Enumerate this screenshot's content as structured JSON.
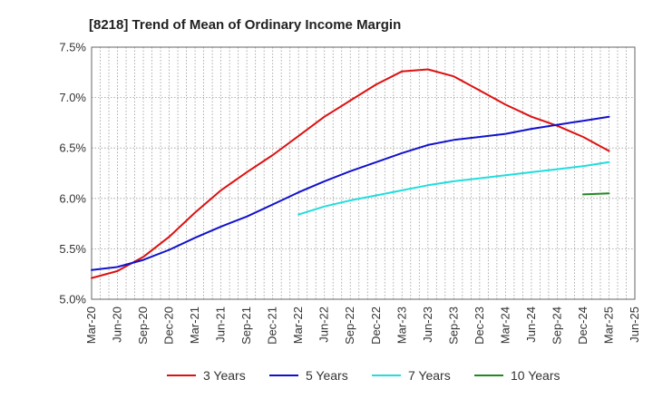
{
  "chart_data": {
    "type": "line",
    "title": "[8218]  Trend of Mean of Ordinary Income Margin",
    "xlabel": "",
    "ylabel": "",
    "x_ticks": [
      "Mar-20",
      "Jun-20",
      "Sep-20",
      "Dec-20",
      "Mar-21",
      "Jun-21",
      "Sep-21",
      "Dec-21",
      "Mar-22",
      "Jun-22",
      "Sep-22",
      "Dec-22",
      "Mar-23",
      "Jun-23",
      "Sep-23",
      "Dec-23",
      "Mar-24",
      "Jun-24",
      "Sep-24",
      "Dec-24",
      "Mar-25",
      "Jun-25"
    ],
    "y_ticks": [
      "5.0%",
      "5.5%",
      "6.0%",
      "6.5%",
      "7.0%",
      "7.5%"
    ],
    "ylim": [
      5.0,
      7.5
    ],
    "grid": true,
    "legend_position": "bottom",
    "series": [
      {
        "name": "3 Years",
        "color": "#dd1111",
        "points": [
          [
            "Mar-20",
            5.21
          ],
          [
            "Jun-20",
            5.28
          ],
          [
            "Sep-20",
            5.42
          ],
          [
            "Dec-20",
            5.62
          ],
          [
            "Mar-21",
            5.86
          ],
          [
            "Jun-21",
            6.08
          ],
          [
            "Sep-21",
            6.26
          ],
          [
            "Dec-21",
            6.43
          ],
          [
            "Mar-22",
            6.62
          ],
          [
            "Jun-22",
            6.81
          ],
          [
            "Sep-22",
            6.97
          ],
          [
            "Dec-22",
            7.13
          ],
          [
            "Mar-23",
            7.26
          ],
          [
            "Jun-23",
            7.28
          ],
          [
            "Sep-23",
            7.21
          ],
          [
            "Dec-23",
            7.07
          ],
          [
            "Mar-24",
            6.93
          ],
          [
            "Jun-24",
            6.81
          ],
          [
            "Sep-24",
            6.72
          ],
          [
            "Dec-24",
            6.61
          ],
          [
            "Mar-25",
            6.47
          ]
        ]
      },
      {
        "name": "5 Years",
        "color": "#1111cc",
        "points": [
          [
            "Mar-20",
            5.29
          ],
          [
            "Jun-20",
            5.32
          ],
          [
            "Sep-20",
            5.39
          ],
          [
            "Dec-20",
            5.49
          ],
          [
            "Mar-21",
            5.61
          ],
          [
            "Jun-21",
            5.72
          ],
          [
            "Sep-21",
            5.82
          ],
          [
            "Dec-21",
            5.94
          ],
          [
            "Mar-22",
            6.06
          ],
          [
            "Jun-22",
            6.17
          ],
          [
            "Sep-22",
            6.27
          ],
          [
            "Dec-22",
            6.36
          ],
          [
            "Mar-23",
            6.45
          ],
          [
            "Jun-23",
            6.53
          ],
          [
            "Sep-23",
            6.58
          ],
          [
            "Dec-23",
            6.61
          ],
          [
            "Mar-24",
            6.64
          ],
          [
            "Jun-24",
            6.69
          ],
          [
            "Sep-24",
            6.73
          ],
          [
            "Dec-24",
            6.77
          ],
          [
            "Mar-25",
            6.81
          ]
        ]
      },
      {
        "name": "7 Years",
        "color": "#22dddd",
        "points": [
          [
            "Mar-22",
            5.84
          ],
          [
            "Jun-22",
            5.92
          ],
          [
            "Sep-22",
            5.98
          ],
          [
            "Dec-22",
            6.03
          ],
          [
            "Mar-23",
            6.08
          ],
          [
            "Jun-23",
            6.13
          ],
          [
            "Sep-23",
            6.17
          ],
          [
            "Dec-23",
            6.2
          ],
          [
            "Mar-24",
            6.23
          ],
          [
            "Jun-24",
            6.26
          ],
          [
            "Sep-24",
            6.29
          ],
          [
            "Dec-24",
            6.32
          ],
          [
            "Mar-25",
            6.36
          ]
        ]
      },
      {
        "name": "10 Years",
        "color": "#228822",
        "points": [
          [
            "Dec-24",
            6.04
          ],
          [
            "Mar-25",
            6.05
          ]
        ]
      }
    ]
  }
}
